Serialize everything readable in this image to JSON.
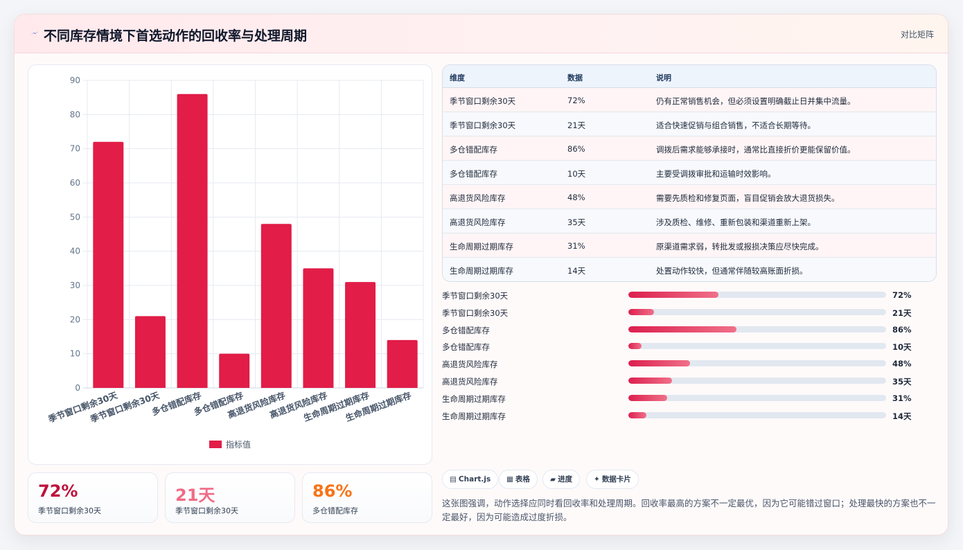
{
  "header": {
    "title": "不同库存情境下首选动作的回收率与处理周期",
    "link": "对比矩阵"
  },
  "chart_data": {
    "type": "bar",
    "categories": [
      "季节窗口剩余30天",
      "季节窗口剩余30天",
      "多仓错配库存",
      "多仓错配库存",
      "高退货风险库存",
      "高退货风险库存",
      "生命周期过期库存",
      "生命周期过期库存"
    ],
    "series": [
      {
        "name": "指标值",
        "values": [
          72,
          21,
          86,
          10,
          48,
          35,
          31,
          14
        ]
      }
    ],
    "yticks": [
      "0",
      "10",
      "20",
      "30",
      "40",
      "50",
      "60",
      "70",
      "80",
      "90"
    ],
    "ylim": [
      0,
      90
    ],
    "grid": true,
    "legend": "bottom",
    "color": "#e11d48"
  },
  "stats": [
    {
      "value": "72%",
      "label": "季节窗口剩余30天",
      "color": "#be123c"
    },
    {
      "value": "21天",
      "label": "季节窗口剩余30天",
      "color": "#f06b86"
    },
    {
      "value": "86%",
      "label": "多仓错配库存",
      "color": "#f97316"
    }
  ],
  "table": {
    "headers": [
      "维度",
      "数据",
      "说明"
    ],
    "rows": [
      {
        "dim": "季节窗口剩余30天",
        "value": "72%",
        "desc": "仍有正常销售机会，但必须设置明确截止日并集中流量。"
      },
      {
        "dim": "季节窗口剩余30天",
        "value": "21天",
        "desc": "适合快速促销与组合销售，不适合长期等待。"
      },
      {
        "dim": "多仓错配库存",
        "value": "86%",
        "desc": "调拨后需求能够承接时，通常比直接折价更能保留价值。"
      },
      {
        "dim": "多仓错配库存",
        "value": "10天",
        "desc": "主要受调拨审批和运输时效影响。"
      },
      {
        "dim": "高退货风险库存",
        "value": "48%",
        "desc": "需要先质检和修复页面，盲目促销会放大退货损失。"
      },
      {
        "dim": "高退货风险库存",
        "value": "35天",
        "desc": "涉及质检、维修、重新包装和渠道重新上架。"
      },
      {
        "dim": "生命周期过期库存",
        "value": "31%",
        "desc": "原渠道需求弱，转批发或报损决策应尽快完成。"
      },
      {
        "dim": "生命周期过期库存",
        "value": "14天",
        "desc": "处置动作较快，但通常伴随较高账面折损。"
      }
    ]
  },
  "progress": [
    {
      "label": "季节窗口剩余30天",
      "value": "72%",
      "fraction": 0.35
    },
    {
      "label": "季节窗口剩余30天",
      "value": "21天",
      "fraction": 0.1
    },
    {
      "label": "多仓错配库存",
      "value": "86%",
      "fraction": 0.42
    },
    {
      "label": "多仓错配库存",
      "value": "10天",
      "fraction": 0.05
    },
    {
      "label": "高退货风险库存",
      "value": "48%",
      "fraction": 0.24
    },
    {
      "label": "高退货风险库存",
      "value": "35天",
      "fraction": 0.17
    },
    {
      "label": "生命周期过期库存",
      "value": "31%",
      "fraction": 0.15
    },
    {
      "label": "生命周期过期库存",
      "value": "14天",
      "fraction": 0.07
    }
  ],
  "tags": [
    {
      "icon": "▤",
      "label": "Chart.js",
      "icon_name": "chart-icon"
    },
    {
      "icon": "▦",
      "label": "表格",
      "icon_name": "table-icon"
    },
    {
      "icon": "▰",
      "label": "进度",
      "icon_name": "progress-icon"
    },
    {
      "icon": "✦",
      "label": "数据卡片",
      "icon_name": "sparkle-icon"
    }
  ],
  "note": "这张图强调，动作选择应同时看回收率和处理周期。回收率最高的方案不一定最优，因为它可能错过窗口；处理最快的方案也不一定最好，因为可能造成过度折损。",
  "colors": {
    "accent": "#e11d48",
    "header_bg": "#ffe9ec"
  }
}
